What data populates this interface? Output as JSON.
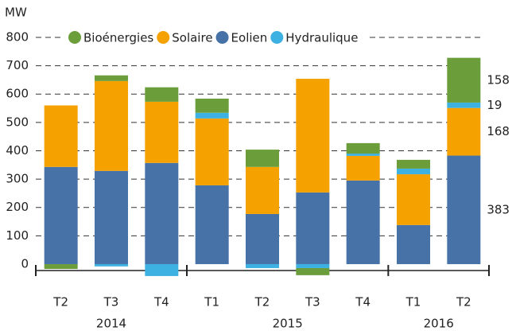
{
  "chart_data": {
    "type": "bar",
    "stacked": true,
    "y_label": "MW",
    "categories": [
      "T2",
      "T3",
      "T4",
      "T1",
      "T2",
      "T3",
      "T4",
      "T1",
      "T2"
    ],
    "groups": [
      {
        "label": "2014",
        "count": 3
      },
      {
        "label": "2015",
        "count": 4
      },
      {
        "label": "2016",
        "count": 2
      }
    ],
    "series": [
      {
        "name": "Bioénergies",
        "color": "#6b9e3b",
        "values": [
          -17,
          20,
          51,
          50,
          61,
          -25,
          37,
          31,
          158
        ]
      },
      {
        "name": "Solaire",
        "color": "#f5a100",
        "values": [
          217,
          317,
          216,
          236,
          166,
          401,
          87,
          179,
          168
        ]
      },
      {
        "name": "Eolien",
        "color": "#4672a8",
        "values": [
          343,
          329,
          357,
          278,
          177,
          253,
          295,
          138,
          383
        ]
      },
      {
        "name": "Hydraulique",
        "color": "#3db1e2",
        "values": [
          0,
          -8,
          -42,
          20,
          -14,
          -14,
          8,
          20,
          19
        ]
      }
    ],
    "ylim": [
      -45,
      800
    ],
    "yticks": [
      0,
      100,
      200,
      300,
      400,
      500,
      600,
      700,
      800
    ],
    "grid": true
  }
}
